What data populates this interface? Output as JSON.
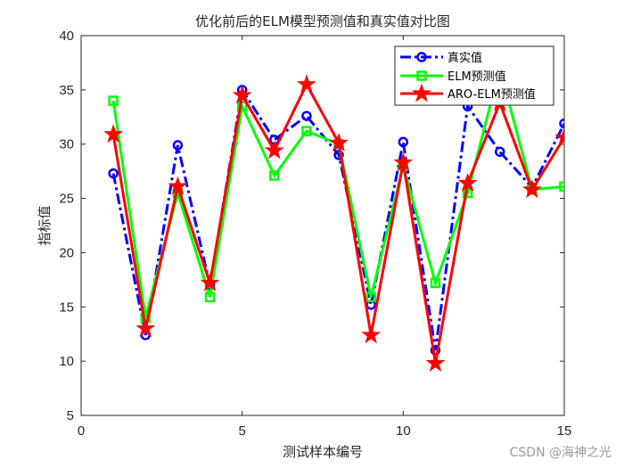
{
  "chart_data": {
    "type": "line",
    "title": "优化前后的ELM模型预测值和真实值对比图",
    "xlabel": "测试样本编号",
    "ylabel": "指标值",
    "xlim": [
      0,
      15
    ],
    "ylim": [
      5,
      40
    ],
    "xticks": [
      0,
      5,
      10,
      15
    ],
    "yticks": [
      5,
      10,
      15,
      20,
      25,
      30,
      35,
      40
    ],
    "grid": false,
    "legend_position": "upper right",
    "x": [
      1,
      2,
      3,
      4,
      5,
      6,
      7,
      8,
      9,
      10,
      11,
      12,
      13,
      14,
      15
    ],
    "series": [
      {
        "name": "真实值",
        "color": "#0000ff",
        "line_style": "dash-dot",
        "marker": "circle",
        "values": [
          27.3,
          12.4,
          29.9,
          17.0,
          35.0,
          30.4,
          32.6,
          29.0,
          15.2,
          30.2,
          11.0,
          33.5,
          29.3,
          26.0,
          31.9
        ]
      },
      {
        "name": "ELM预测值",
        "color": "#00ff00",
        "line_style": "solid",
        "marker": "square",
        "values": [
          34.0,
          14.0,
          25.5,
          15.9,
          33.5,
          27.1,
          31.2,
          30.0,
          15.9,
          28.0,
          17.2,
          25.5,
          37.0,
          25.8,
          26.1
        ]
      },
      {
        "name": "ARO-ELM预测值",
        "color": "#ff0000",
        "line_style": "solid",
        "marker": "pentagram",
        "values": [
          30.9,
          13.0,
          26.1,
          17.2,
          34.5,
          29.4,
          35.5,
          30.1,
          12.4,
          28.3,
          9.8,
          26.4,
          33.8,
          25.8,
          30.6
        ]
      }
    ]
  },
  "watermark": "CSDN @海神之光"
}
